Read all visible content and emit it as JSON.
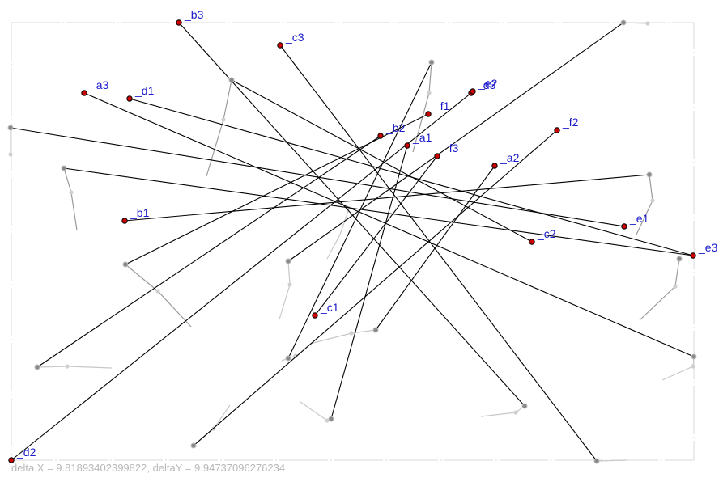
{
  "status_text": "delta X = 9.81893402399822, deltaY = 9.94737096276234",
  "colors": {
    "main_line": "#000000",
    "ghost_line": "#c8c8c8",
    "ghost_dark": "#9a9a9a",
    "point_fill": "#cc0000",
    "point_stroke": "#000000",
    "label": "#1a1acc",
    "frame": "#d9d9d9"
  },
  "points": [
    {
      "label": "_a1"
    },
    {
      "label": "_a2"
    },
    {
      "label": "_a3"
    },
    {
      "label": "_b1"
    },
    {
      "label": "_b2"
    },
    {
      "label": "_b3"
    },
    {
      "label": "_c1"
    },
    {
      "label": "_c2"
    },
    {
      "label": "_c3"
    },
    {
      "label": "_d1"
    },
    {
      "label": "_d2"
    },
    {
      "label": "_d3"
    },
    {
      "label": "_e1"
    },
    {
      "label": "_e2"
    },
    {
      "label": "_e3"
    },
    {
      "label": "_f1"
    },
    {
      "label": "_f2"
    },
    {
      "label": "_f3"
    }
  ]
}
